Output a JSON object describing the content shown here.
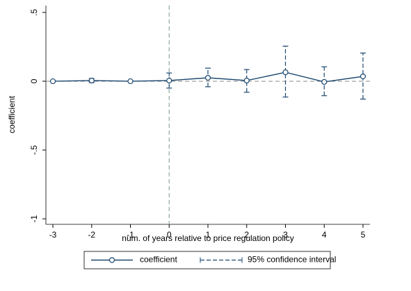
{
  "chart_data": {
    "type": "errorline",
    "x_label": "num. of years relative to price regulation policy",
    "y_label": "coefficient",
    "x": [
      -3,
      -2,
      -1,
      0,
      1,
      2,
      3,
      4,
      5
    ],
    "series": [
      {
        "name": "coefficient",
        "color": "#1a476f",
        "values": [
          0,
          0.005,
          0,
          0.005,
          0.025,
          0.005,
          0.065,
          -0.005,
          0.035
        ]
      },
      {
        "name": "95% confidence interval",
        "color": "#1a476f",
        "lower": [
          0,
          -0.01,
          0,
          -0.05,
          -0.04,
          -0.08,
          -0.115,
          -0.105,
          -0.13
        ],
        "upper": [
          0,
          0.02,
          0,
          0.06,
          0.095,
          0.085,
          0.255,
          0.105,
          0.205
        ]
      }
    ],
    "xlim": [
      -3.18,
      5.18
    ],
    "xticks": [
      -3,
      -2,
      -1,
      0,
      1,
      2,
      3,
      4,
      5
    ],
    "ylim": [
      -1.04,
      0.55
    ],
    "yticks": [
      -1,
      {
        "value": -0.5,
        "label": "-.5"
      },
      0,
      {
        "value": 0.5,
        "label": ".5"
      }
    ],
    "reference_lines": {
      "x": 0,
      "y": 0
    }
  }
}
